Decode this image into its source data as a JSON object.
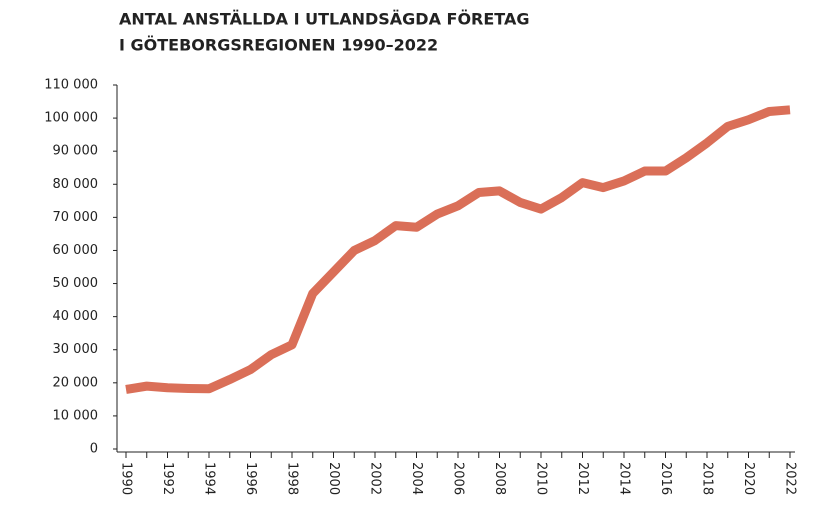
{
  "chart_data": {
    "type": "line",
    "title": [
      "ANTAL ANSTÄLLDA I UTLANDSÄGDA FÖRETAG",
      "I GÖTEBORGSREGIONEN 1990–2022"
    ],
    "x": [
      1990,
      1991,
      1992,
      1993,
      1994,
      1995,
      1996,
      1997,
      1998,
      1999,
      2000,
      2001,
      2002,
      2003,
      2004,
      2005,
      2006,
      2007,
      2008,
      2009,
      2010,
      2011,
      2012,
      2013,
      2014,
      2015,
      2016,
      2017,
      2018,
      2019,
      2020,
      2021,
      2022
    ],
    "series": [
      {
        "color": "#da6f58",
        "values": [
          18000,
          19000,
          18500,
          18300,
          18200,
          21000,
          24000,
          28500,
          31500,
          47000,
          53500,
          60000,
          63000,
          67500,
          67000,
          71000,
          73500,
          77500,
          78000,
          74500,
          72500,
          76000,
          80500,
          79000,
          81000,
          84000,
          84000,
          88000,
          92500,
          97500,
          99500,
          102000,
          102500
        ]
      }
    ],
    "xlim": [
      1990,
      2022
    ],
    "xticks": [
      1990,
      1992,
      1994,
      1996,
      1998,
      2000,
      2002,
      2004,
      2006,
      2008,
      2010,
      2012,
      2014,
      2016,
      2018,
      2020,
      2022
    ],
    "ylim": [
      0,
      110000
    ],
    "yticks": [
      0,
      {
        "value": 10000,
        "label": "10 000"
      },
      {
        "value": 20000,
        "label": "20 000"
      },
      {
        "value": 30000,
        "label": "30 000"
      },
      {
        "value": 40000,
        "label": "40 000"
      },
      {
        "value": 50000,
        "label": "50 000"
      },
      {
        "value": 60000,
        "label": "60 000"
      },
      {
        "value": 70000,
        "label": "70 000"
      },
      {
        "value": 80000,
        "label": "80 000"
      },
      {
        "value": 90000,
        "label": "90 000"
      },
      {
        "value": 100000,
        "label": "100 000"
      },
      {
        "value": 110000,
        "label": "110 000"
      }
    ],
    "grid": false
  }
}
